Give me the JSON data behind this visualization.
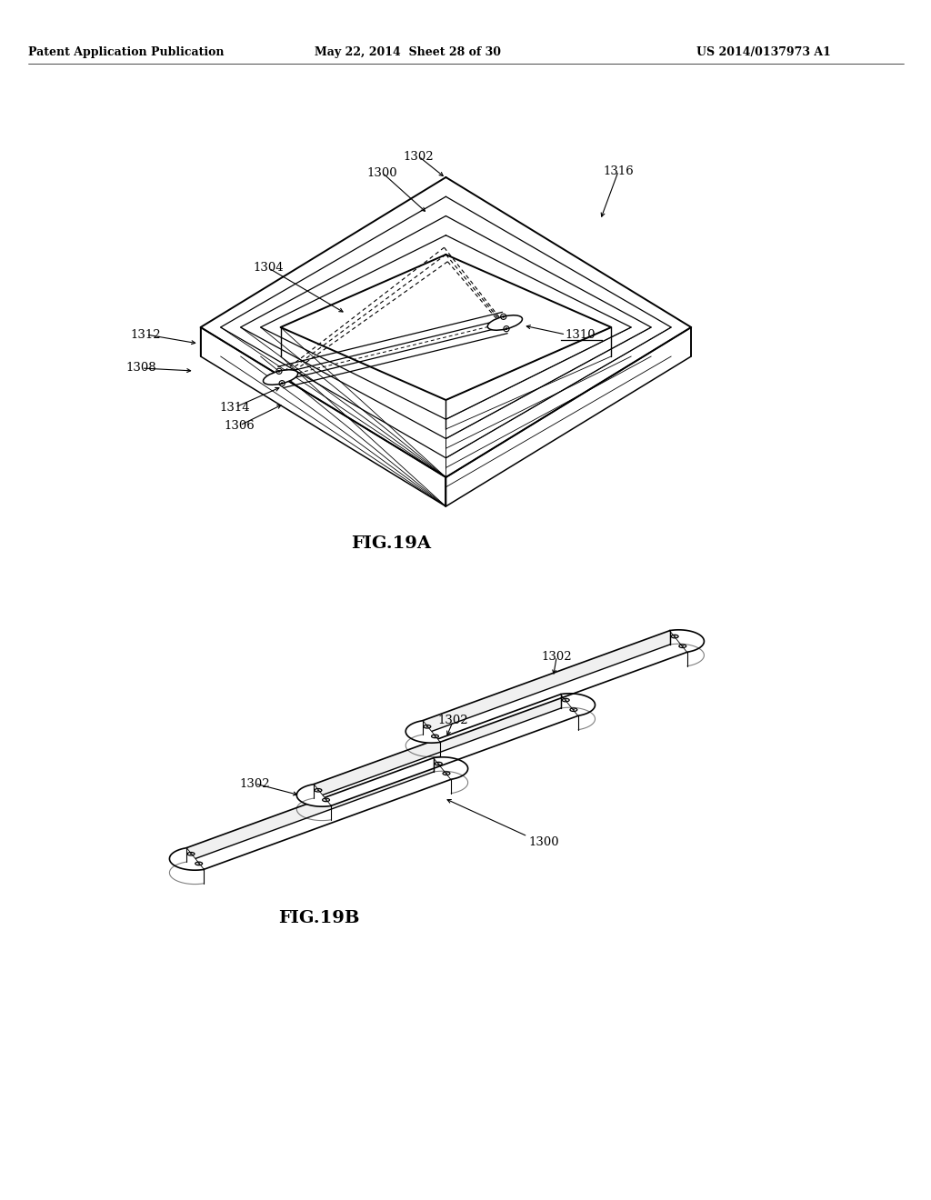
{
  "background_color": "#ffffff",
  "header_left": "Patent Application Publication",
  "header_center": "May 22, 2014  Sheet 28 of 30",
  "header_right": "US 2014/0137973 A1",
  "fig19a_label": "FIG.19A",
  "fig19b_label": "FIG.19B"
}
